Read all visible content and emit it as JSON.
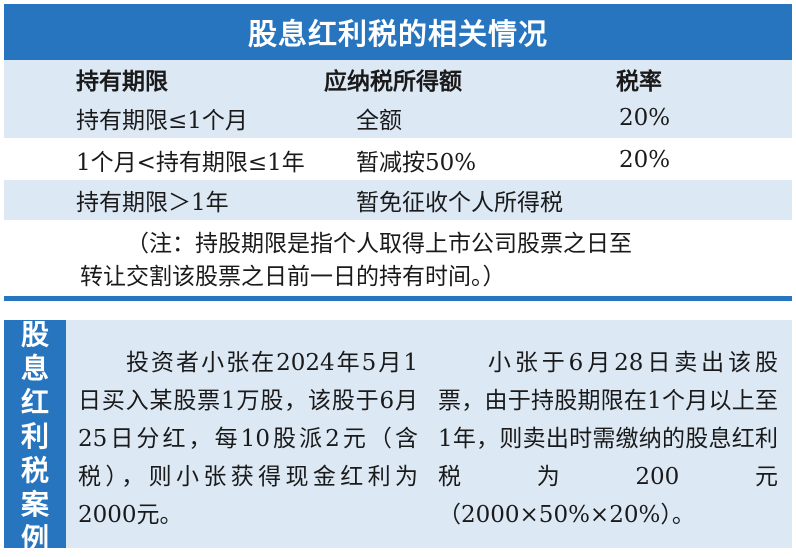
{
  "title": "股息红利税的相关情况",
  "table": {
    "headers": [
      "持有期限",
      "应纳税所得额",
      "税率"
    ],
    "rows": [
      {
        "period": "持有期限≤1个月",
        "taxable": "全额",
        "rate": "20%"
      },
      {
        "period": "1个月<持有期限≤1年",
        "taxable": "暂减按50%",
        "rate": "20%"
      },
      {
        "period": "持有期限＞1年",
        "taxable": "暂免征收个人所得税",
        "rate": ""
      }
    ],
    "note_line1": "（注：持股期限是指个人取得上市公司股票之日至",
    "note_line2": "转让交割该股票之日前一日的持有时间。）"
  },
  "case": {
    "label_chars": [
      "股",
      "息",
      "红",
      "利",
      "税",
      "案",
      "例"
    ],
    "left_text": "投资者小张在2024年5月1日买入某股票1万股，该股于6月25日分红，每10股派2元（含税），则小张获得现金红利为2000元。",
    "right_text": "小张于6月28日卖出该股票，由于持股期限在1个月以上至1年，则卖出时需缴纳的股息红利税为200元（2000×50%×20%）。"
  },
  "colors": {
    "accent_blue": "#2775bf",
    "light_blue": "#dce8f4"
  }
}
